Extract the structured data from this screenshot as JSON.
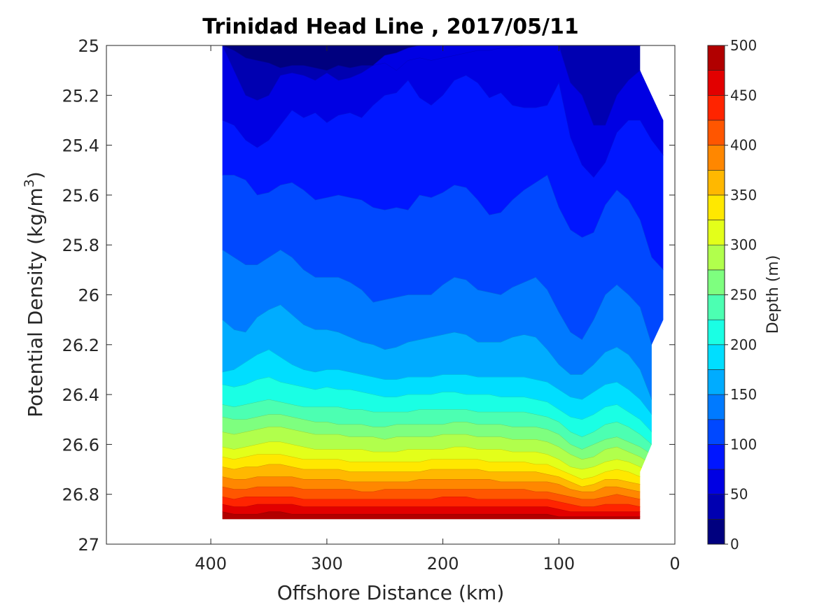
{
  "chart_data": {
    "type": "contour",
    "title": "Trinidad Head Line , 2017/05/11",
    "xlabel": "Offshore Distance (km)",
    "ylabel_main": "Potential Density (kg/m",
    "ylabel_sup": "3",
    "ylabel_close": ")",
    "xlim": [
      490,
      0
    ],
    "ylim": [
      25,
      27
    ],
    "x_reversed": true,
    "y_reversed": true,
    "x_ticks": [
      {
        "value": 400,
        "label": "400"
      },
      {
        "value": 300,
        "label": "300"
      },
      {
        "value": 200,
        "label": "200"
      },
      {
        "value": 100,
        "label": "100"
      },
      {
        "value": 0,
        "label": "0"
      }
    ],
    "y_ticks": [
      {
        "value": 25.0,
        "label": "25"
      },
      {
        "value": 25.2,
        "label": "25.2"
      },
      {
        "value": 25.4,
        "label": "25.4"
      },
      {
        "value": 25.6,
        "label": "25.6"
      },
      {
        "value": 25.8,
        "label": "25.8"
      },
      {
        "value": 26.0,
        "label": "26"
      },
      {
        "value": 26.2,
        "label": "26.2"
      },
      {
        "value": 26.4,
        "label": "26.4"
      },
      {
        "value": 26.6,
        "label": "26.6"
      },
      {
        "value": 26.8,
        "label": "26.8"
      },
      {
        "value": 27.0,
        "label": "27"
      }
    ],
    "colorbar": {
      "label": "Depth (m)",
      "range": [
        0,
        500
      ],
      "levels": [
        0,
        25,
        50,
        75,
        100,
        125,
        150,
        175,
        200,
        225,
        250,
        275,
        300,
        325,
        350,
        375,
        400,
        425,
        450,
        475,
        500
      ],
      "ticks": [
        {
          "value": 0,
          "label": "0"
        },
        {
          "value": 50,
          "label": "50"
        },
        {
          "value": 100,
          "label": "100"
        },
        {
          "value": 150,
          "label": "150"
        },
        {
          "value": 200,
          "label": "200"
        },
        {
          "value": 250,
          "label": "250"
        },
        {
          "value": 300,
          "label": "300"
        },
        {
          "value": 350,
          "label": "350"
        },
        {
          "value": 400,
          "label": "400"
        },
        {
          "value": 450,
          "label": "450"
        },
        {
          "value": 500,
          "label": "500"
        }
      ],
      "colors": [
        "#00007f",
        "#0000b1",
        "#0000e3",
        "#0016ff",
        "#0048ff",
        "#007aff",
        "#00acff",
        "#00deff",
        "#1affe4",
        "#4cffb2",
        "#7eff7f",
        "#b1ff4c",
        "#e3ff1a",
        "#ffe800",
        "#ffb800",
        "#ff8700",
        "#ff5600",
        "#ff2400",
        "#e20000",
        "#b10000"
      ]
    },
    "data_extent": {
      "x_outer": 390,
      "inner_boundary": [
        [
          30,
          26.9
        ],
        [
          30,
          26.71
        ],
        [
          20,
          26.6
        ],
        [
          20,
          26.2
        ],
        [
          10,
          26.1
        ],
        [
          10,
          25.3
        ],
        [
          30,
          25.1
        ],
        [
          30,
          25.0
        ]
      ]
    },
    "x_nodes": [
      390,
      380,
      370,
      360,
      350,
      340,
      330,
      320,
      310,
      300,
      290,
      280,
      270,
      260,
      250,
      240,
      230,
      220,
      210,
      200,
      190,
      180,
      170,
      160,
      150,
      140,
      130,
      120,
      110,
      100,
      90,
      80,
      70,
      60,
      50,
      40,
      30,
      20,
      10
    ],
    "contours": [
      {
        "level": 25,
        "y": [
          25.0,
          25.02,
          25.05,
          25.06,
          25.07,
          25.09,
          25.08,
          25.08,
          25.09,
          25.1,
          25.08,
          25.09,
          25.08,
          25.08,
          25.07,
          25.1,
          25.06,
          25.05,
          25.06,
          25.05,
          25.04,
          25.03,
          25.02,
          25.02,
          25.01,
          25.01,
          25.0,
          25.0,
          25.0,
          25.0,
          25.0,
          25.0,
          25.0,
          25.0,
          25.0,
          25.0,
          25.0,
          25.12,
          25.3
        ]
      },
      {
        "level": 50,
        "y": [
          25.0,
          25.1,
          25.2,
          25.22,
          25.2,
          25.12,
          25.11,
          25.12,
          25.14,
          25.11,
          25.14,
          25.13,
          25.11,
          25.08,
          25.04,
          25.03,
          25.01,
          25.0,
          25.0,
          25.0,
          25.0,
          25.0,
          25.0,
          25.0,
          25.0,
          25.0,
          25.0,
          25.0,
          25.0,
          25.0,
          25.15,
          25.2,
          25.32,
          25.32,
          25.2,
          25.14,
          25.1,
          25.18,
          25.3
        ]
      },
      {
        "level": 75,
        "y": [
          25.3,
          25.32,
          25.38,
          25.41,
          25.38,
          25.32,
          25.26,
          25.29,
          25.27,
          25.31,
          25.28,
          25.27,
          25.29,
          25.24,
          25.2,
          25.19,
          25.14,
          25.21,
          25.24,
          25.2,
          25.14,
          25.12,
          25.15,
          25.21,
          25.19,
          25.24,
          25.25,
          25.25,
          25.24,
          25.15,
          25.37,
          25.48,
          25.53,
          25.47,
          25.35,
          25.3,
          25.3,
          25.38,
          25.5
        ]
      },
      {
        "level": 100,
        "y": [
          25.52,
          25.52,
          25.54,
          25.6,
          25.59,
          25.56,
          25.55,
          25.58,
          25.62,
          25.61,
          25.6,
          25.61,
          25.62,
          25.65,
          25.66,
          25.65,
          25.66,
          25.6,
          25.61,
          25.59,
          25.56,
          25.57,
          25.62,
          25.68,
          25.67,
          25.62,
          25.58,
          25.55,
          25.52,
          25.65,
          25.74,
          25.77,
          25.75,
          25.64,
          25.58,
          25.62,
          25.7,
          25.85,
          25.95
        ]
      },
      {
        "level": 125,
        "y": [
          25.82,
          25.85,
          25.88,
          25.88,
          25.85,
          25.82,
          25.85,
          25.9,
          25.93,
          25.93,
          25.93,
          25.95,
          25.98,
          26.03,
          26.02,
          26.01,
          26.0,
          26.0,
          26.0,
          25.96,
          25.93,
          25.94,
          25.98,
          25.99,
          26.0,
          25.97,
          25.95,
          25.93,
          25.98,
          26.07,
          26.15,
          26.18,
          26.1,
          26.0,
          25.96,
          26.0,
          26.05,
          26.2,
          26.1
        ]
      },
      {
        "level": 150,
        "y": [
          26.1,
          26.14,
          26.15,
          26.09,
          26.06,
          26.04,
          26.08,
          26.12,
          26.14,
          26.14,
          26.15,
          26.17,
          26.19,
          26.2,
          26.22,
          26.21,
          26.19,
          26.18,
          26.17,
          26.16,
          26.15,
          26.16,
          26.19,
          26.19,
          26.19,
          26.17,
          26.16,
          26.17,
          26.22,
          26.28,
          26.32,
          26.32,
          26.28,
          26.23,
          26.21,
          26.24,
          26.3,
          26.42,
          26.5
        ]
      },
      {
        "level": 175,
        "y": [
          26.31,
          26.3,
          26.27,
          26.24,
          26.22,
          26.25,
          26.28,
          26.3,
          26.31,
          26.3,
          26.3,
          26.31,
          26.32,
          26.33,
          26.34,
          26.34,
          26.33,
          26.33,
          26.33,
          26.32,
          26.32,
          26.32,
          26.33,
          26.33,
          26.33,
          26.33,
          26.33,
          26.34,
          26.35,
          26.38,
          26.41,
          26.42,
          26.39,
          26.36,
          26.35,
          26.38,
          26.42,
          26.48,
          26.55
        ]
      },
      {
        "level": 200,
        "y": [
          26.36,
          26.37,
          26.36,
          26.34,
          26.33,
          26.35,
          26.36,
          26.37,
          26.38,
          26.37,
          26.38,
          26.38,
          26.39,
          26.4,
          26.41,
          26.41,
          26.4,
          26.4,
          26.4,
          26.39,
          26.39,
          26.4,
          26.4,
          26.4,
          26.41,
          26.41,
          26.41,
          26.42,
          26.43,
          26.46,
          26.49,
          26.5,
          26.48,
          26.45,
          26.44,
          26.47,
          26.5,
          26.55,
          26.6
        ]
      },
      {
        "level": 225,
        "y": [
          26.44,
          26.45,
          26.44,
          26.43,
          26.42,
          26.43,
          26.44,
          26.45,
          26.45,
          26.45,
          26.45,
          26.46,
          26.46,
          26.47,
          26.47,
          26.47,
          26.47,
          26.46,
          26.46,
          26.46,
          26.46,
          26.46,
          26.47,
          26.47,
          26.47,
          26.47,
          26.47,
          26.48,
          26.49,
          26.51,
          26.55,
          26.57,
          26.55,
          26.52,
          26.51,
          26.53,
          26.56,
          26.6,
          26.65
        ]
      },
      {
        "level": 250,
        "y": [
          26.49,
          26.5,
          26.5,
          26.49,
          26.48,
          26.48,
          26.49,
          26.5,
          26.51,
          26.51,
          26.52,
          26.52,
          26.52,
          26.53,
          26.53,
          26.52,
          26.52,
          26.52,
          26.52,
          26.52,
          26.51,
          26.51,
          26.52,
          26.52,
          26.52,
          26.53,
          26.53,
          26.53,
          26.54,
          26.56,
          26.6,
          26.62,
          26.6,
          26.58,
          26.57,
          26.59,
          26.61,
          26.64,
          26.7
        ]
      },
      {
        "level": 275,
        "y": [
          26.55,
          26.56,
          26.55,
          26.54,
          26.53,
          26.53,
          26.54,
          26.55,
          26.56,
          26.56,
          26.56,
          26.57,
          26.57,
          26.57,
          26.58,
          26.57,
          26.57,
          26.57,
          26.57,
          26.56,
          26.56,
          26.56,
          26.57,
          26.57,
          26.57,
          26.58,
          26.58,
          26.58,
          26.59,
          26.61,
          26.64,
          26.66,
          26.65,
          26.62,
          26.61,
          26.63,
          26.65,
          26.68,
          26.72
        ]
      },
      {
        "level": 300,
        "y": [
          26.61,
          26.62,
          26.61,
          26.6,
          26.59,
          26.59,
          26.6,
          26.61,
          26.62,
          26.62,
          26.62,
          26.62,
          26.62,
          26.63,
          26.63,
          26.63,
          26.62,
          26.62,
          26.62,
          26.62,
          26.61,
          26.61,
          26.62,
          26.62,
          26.62,
          26.63,
          26.63,
          26.63,
          26.64,
          26.66,
          26.69,
          26.7,
          26.69,
          26.67,
          26.66,
          26.67,
          26.69,
          26.72,
          26.75
        ]
      },
      {
        "level": 325,
        "y": [
          26.65,
          26.66,
          26.65,
          26.64,
          26.64,
          26.64,
          26.65,
          26.66,
          26.66,
          26.66,
          26.66,
          26.67,
          26.67,
          26.67,
          26.67,
          26.67,
          26.67,
          26.67,
          26.66,
          26.66,
          26.66,
          26.66,
          26.66,
          26.67,
          26.67,
          26.67,
          26.67,
          26.68,
          26.68,
          26.7,
          26.72,
          26.74,
          26.73,
          26.71,
          26.7,
          26.71,
          26.73,
          26.75,
          26.78
        ]
      },
      {
        "level": 350,
        "y": [
          26.69,
          26.7,
          26.69,
          26.69,
          26.68,
          26.68,
          26.69,
          26.7,
          26.7,
          26.7,
          26.7,
          26.71,
          26.71,
          26.71,
          26.71,
          26.71,
          26.71,
          26.71,
          26.7,
          26.7,
          26.7,
          26.7,
          26.7,
          26.71,
          26.71,
          26.71,
          26.71,
          26.71,
          26.72,
          26.73,
          26.75,
          26.77,
          26.76,
          26.74,
          26.74,
          26.75,
          26.76,
          26.78,
          26.8
        ]
      },
      {
        "level": 375,
        "y": [
          26.73,
          26.74,
          26.74,
          26.73,
          26.73,
          26.73,
          26.73,
          26.74,
          26.74,
          26.74,
          26.74,
          26.75,
          26.75,
          26.75,
          26.75,
          26.75,
          26.75,
          26.74,
          26.74,
          26.74,
          26.74,
          26.74,
          26.74,
          26.74,
          26.75,
          26.75,
          26.75,
          26.75,
          26.75,
          26.76,
          26.78,
          26.79,
          26.79,
          26.77,
          26.77,
          26.78,
          26.79,
          26.8,
          26.82
        ]
      },
      {
        "level": 400,
        "y": [
          26.77,
          26.78,
          26.78,
          26.77,
          26.77,
          26.77,
          26.77,
          26.78,
          26.78,
          26.78,
          26.78,
          26.78,
          26.79,
          26.79,
          26.78,
          26.78,
          26.78,
          26.78,
          26.78,
          26.78,
          26.78,
          26.78,
          26.78,
          26.78,
          26.78,
          26.78,
          26.78,
          26.79,
          26.79,
          26.8,
          26.81,
          26.82,
          26.82,
          26.81,
          26.8,
          26.81,
          26.82,
          26.83,
          26.85
        ]
      },
      {
        "level": 425,
        "y": [
          26.81,
          26.82,
          26.81,
          26.81,
          26.81,
          26.81,
          26.81,
          26.82,
          26.82,
          26.82,
          26.82,
          26.82,
          26.82,
          26.82,
          26.82,
          26.82,
          26.82,
          26.82,
          26.82,
          26.81,
          26.81,
          26.81,
          26.82,
          26.82,
          26.82,
          26.82,
          26.82,
          26.82,
          26.82,
          26.83,
          26.84,
          26.85,
          26.85,
          26.84,
          26.84,
          26.84,
          26.85,
          26.86,
          26.87
        ]
      },
      {
        "level": 450,
        "y": [
          26.84,
          26.85,
          26.85,
          26.84,
          26.84,
          26.84,
          26.84,
          26.85,
          26.85,
          26.85,
          26.85,
          26.85,
          26.85,
          26.85,
          26.85,
          26.85,
          26.85,
          26.85,
          26.85,
          26.85,
          26.85,
          26.85,
          26.85,
          26.85,
          26.85,
          26.85,
          26.85,
          26.85,
          26.85,
          26.86,
          26.87,
          26.87,
          26.87,
          26.87,
          26.87,
          26.87,
          26.87,
          26.88,
          26.89
        ]
      },
      {
        "level": 475,
        "y": [
          26.87,
          26.88,
          26.88,
          26.88,
          26.87,
          26.87,
          26.88,
          26.88,
          26.88,
          26.88,
          26.88,
          26.88,
          26.88,
          26.88,
          26.88,
          26.88,
          26.88,
          26.88,
          26.88,
          26.88,
          26.88,
          26.88,
          26.88,
          26.88,
          26.88,
          26.88,
          26.88,
          26.88,
          26.88,
          26.89,
          26.89,
          26.89,
          26.89,
          26.89,
          26.89,
          26.89,
          26.89,
          26.9,
          26.9
        ]
      },
      {
        "level": 500,
        "y": [
          26.9,
          26.9,
          26.9,
          26.9,
          26.9,
          26.9,
          26.9,
          26.9,
          26.9,
          26.9,
          26.9,
          26.9,
          26.9,
          26.9,
          26.9,
          26.9,
          26.9,
          26.9,
          26.9,
          26.9,
          26.9,
          26.9,
          26.9,
          26.9,
          26.9,
          26.9,
          26.9,
          26.9,
          26.9,
          26.9,
          26.9,
          26.9,
          26.9,
          26.9,
          26.9,
          26.9,
          26.9,
          26.9,
          26.9
        ]
      }
    ]
  }
}
